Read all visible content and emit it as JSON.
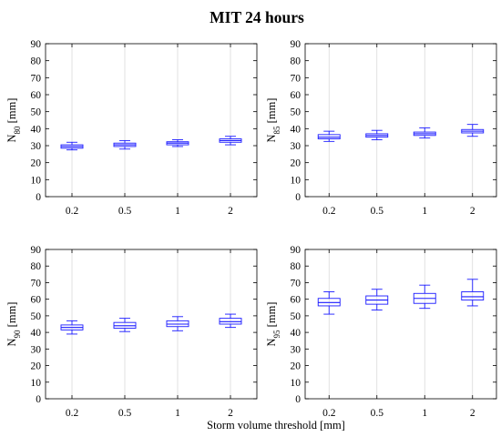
{
  "figure": {
    "title": "MIT 24 hours",
    "xlabel": "Storm volume threshold [mm]"
  },
  "colors": {
    "box": "#1a1aff",
    "median": "#1a1aff",
    "grid": "#d9d9d9",
    "axis": "#000000"
  },
  "chart_data": [
    {
      "type": "box",
      "title": "",
      "ylabel_main": "N",
      "ylabel_sub": "80",
      "ylabel_unit": " [mm]",
      "categories": [
        "0.2",
        "0.5",
        "1",
        "2"
      ],
      "ylim": [
        0,
        90
      ],
      "yticks": [
        0,
        10,
        20,
        30,
        40,
        50,
        60,
        70,
        80,
        90
      ],
      "grid": "x",
      "boxes": [
        {
          "whisker_low": 27.5,
          "q1": 28.5,
          "median": 29.5,
          "q3": 30.5,
          "whisker_high": 32
        },
        {
          "whisker_low": 28,
          "q1": 29.5,
          "median": 30.5,
          "q3": 31.5,
          "whisker_high": 33
        },
        {
          "whisker_low": 29.5,
          "q1": 30.5,
          "median": 31.5,
          "q3": 32.3,
          "whisker_high": 33.5
        },
        {
          "whisker_low": 30.5,
          "q1": 32,
          "median": 33,
          "q3": 34,
          "whisker_high": 35.5
        }
      ]
    },
    {
      "type": "box",
      "title": "",
      "ylabel_main": "N",
      "ylabel_sub": "85",
      "ylabel_unit": " [mm]",
      "categories": [
        "0.2",
        "0.5",
        "1",
        "2"
      ],
      "ylim": [
        0,
        90
      ],
      "yticks": [
        0,
        10,
        20,
        30,
        40,
        50,
        60,
        70,
        80,
        90
      ],
      "grid": "x",
      "boxes": [
        {
          "whisker_low": 32.5,
          "q1": 34,
          "median": 35,
          "q3": 36.5,
          "whisker_high": 38.5
        },
        {
          "whisker_low": 33.5,
          "q1": 35,
          "median": 36,
          "q3": 37,
          "whisker_high": 39
        },
        {
          "whisker_low": 34.5,
          "q1": 36,
          "median": 37,
          "q3": 38,
          "whisker_high": 40.5
        },
        {
          "whisker_low": 35.5,
          "q1": 37.5,
          "median": 38.5,
          "q3": 39.5,
          "whisker_high": 42.5
        }
      ]
    },
    {
      "type": "box",
      "title": "",
      "ylabel_main": "N",
      "ylabel_sub": "90",
      "ylabel_unit": " [mm]",
      "categories": [
        "0.2",
        "0.5",
        "1",
        "2"
      ],
      "ylim": [
        0,
        90
      ],
      "yticks": [
        0,
        10,
        20,
        30,
        40,
        50,
        60,
        70,
        80,
        90
      ],
      "grid": "x",
      "boxes": [
        {
          "whisker_low": 39,
          "q1": 41.5,
          "median": 43,
          "q3": 44.5,
          "whisker_high": 47
        },
        {
          "whisker_low": 40.5,
          "q1": 42.5,
          "median": 44,
          "q3": 46,
          "whisker_high": 48.5
        },
        {
          "whisker_low": 41,
          "q1": 43.5,
          "median": 45,
          "q3": 47,
          "whisker_high": 49.5
        },
        {
          "whisker_low": 43,
          "q1": 45,
          "median": 46.5,
          "q3": 48.5,
          "whisker_high": 51
        }
      ]
    },
    {
      "type": "box",
      "title": "",
      "ylabel_main": "N",
      "ylabel_sub": "95",
      "ylabel_unit": " [mm]",
      "categories": [
        "0.2",
        "0.5",
        "1",
        "2"
      ],
      "ylim": [
        0,
        90
      ],
      "yticks": [
        0,
        10,
        20,
        30,
        40,
        50,
        60,
        70,
        80,
        90
      ],
      "grid": "x",
      "boxes": [
        {
          "whisker_low": 51,
          "q1": 56,
          "median": 58,
          "q3": 60.5,
          "whisker_high": 64.5
        },
        {
          "whisker_low": 53.5,
          "q1": 57,
          "median": 59.5,
          "q3": 62,
          "whisker_high": 66
        },
        {
          "whisker_low": 54.5,
          "q1": 57.5,
          "median": 60.5,
          "q3": 63.5,
          "whisker_high": 68.5
        },
        {
          "whisker_low": 56,
          "q1": 59.5,
          "median": 61.5,
          "q3": 64.5,
          "whisker_high": 72
        }
      ]
    }
  ]
}
